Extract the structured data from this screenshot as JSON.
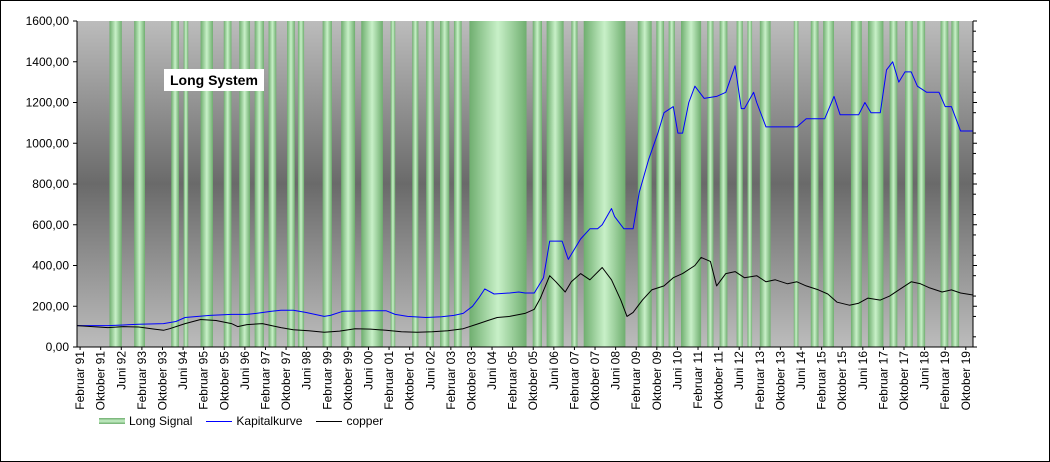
{
  "chart_data": {
    "type": "line",
    "title": "Long System",
    "xlabel": "",
    "ylabel": "",
    "ylim": [
      0,
      1600
    ],
    "y_ticks": [
      "0,00",
      "200,00",
      "400,00",
      "600,00",
      "800,00",
      "1000,00",
      "1200,00",
      "1400,00",
      "1600,00"
    ],
    "x_range": [
      1991.0,
      2020.0
    ],
    "x_tick_labels": [
      "Februar 91",
      "Oktober 91",
      "Juni 92",
      "Februar 93",
      "Oktober 93",
      "Juni 94",
      "Februar 95",
      "Oktober 95",
      "Juni 96",
      "Februar 97",
      "Oktober 97",
      "Juni 98",
      "Februar 99",
      "Oktober 99",
      "Juni 00",
      "Februar 01",
      "Oktober 01",
      "Juni 02",
      "Februar 03",
      "Oktober 03",
      "Juni 04",
      "Februar 05",
      "Oktober 05",
      "Juni 06",
      "Februar 07",
      "Oktober 07",
      "Juni 08",
      "Februar 09",
      "Oktober 09",
      "Juni 10",
      "Februar 11",
      "Oktober 11",
      "Juni 12",
      "Februar 13",
      "Oktober 13",
      "Juni 14",
      "Februar 15",
      "Oktober 15",
      "Juni 16",
      "Februar 17",
      "Oktober 17",
      "Juni 18",
      "Februar 19",
      "Oktober 19"
    ],
    "legend_position": "bottom-left",
    "legend": [
      "Long Signal",
      "Kapitalkurve",
      "copper"
    ],
    "colors": {
      "Kapitalkurve": "#0000ff",
      "copper": "#000000",
      "signal_edge": "#6fae6f",
      "signal_center": "#c8f0c8"
    },
    "long_signal_periods": [
      [
        1992.05,
        1992.45
      ],
      [
        1992.85,
        1993.2
      ],
      [
        1994.05,
        1994.3
      ],
      [
        1994.45,
        1994.6
      ],
      [
        1995.0,
        1995.4
      ],
      [
        1995.75,
        1996.0
      ],
      [
        1996.25,
        1996.6
      ],
      [
        1996.75,
        1997.05
      ],
      [
        1997.2,
        1997.45
      ],
      [
        1997.8,
        1998.05
      ],
      [
        1998.15,
        1998.35
      ],
      [
        1998.95,
        1999.25
      ],
      [
        1999.55,
        2000.0
      ],
      [
        2000.2,
        2000.9
      ],
      [
        2001.15,
        2001.3
      ],
      [
        2001.85,
        2002.05
      ],
      [
        2002.3,
        2002.55
      ],
      [
        2002.75,
        2003.05
      ],
      [
        2003.2,
        2003.45
      ],
      [
        2003.7,
        2005.55
      ],
      [
        2005.75,
        2006.05
      ],
      [
        2006.2,
        2006.75
      ],
      [
        2007.0,
        2007.2
      ],
      [
        2007.4,
        2008.75
      ],
      [
        2009.15,
        2009.6
      ],
      [
        2009.75,
        2010.0
      ],
      [
        2010.15,
        2010.35
      ],
      [
        2010.55,
        2011.2
      ],
      [
        2011.4,
        2011.6
      ],
      [
        2011.8,
        2012.05
      ],
      [
        2012.35,
        2012.55
      ],
      [
        2012.7,
        2012.85
      ],
      [
        2013.1,
        2013.45
      ],
      [
        2014.2,
        2014.35
      ],
      [
        2014.75,
        2015.0
      ],
      [
        2015.15,
        2015.5
      ],
      [
        2016.05,
        2016.4
      ],
      [
        2016.6,
        2017.1
      ],
      [
        2017.3,
        2017.55
      ],
      [
        2017.8,
        2018.05
      ],
      [
        2018.2,
        2018.45
      ],
      [
        2018.95,
        2019.2
      ],
      [
        2019.3,
        2019.55
      ]
    ],
    "series": [
      {
        "name": "Kapitalkurve",
        "x": [
          1991.0,
          1992.0,
          1992.5,
          1993.0,
          1993.8,
          1994.2,
          1994.5,
          1995.3,
          1996.0,
          1996.5,
          1996.8,
          1997.3,
          1997.6,
          1998.0,
          1998.4,
          1999.0,
          1999.2,
          1999.6,
          2000.5,
          2001.0,
          2001.3,
          2001.7,
          2002.3,
          2002.8,
          2003.2,
          2003.5,
          2003.8,
          2004.0,
          2004.2,
          2004.5,
          2005.0,
          2005.3,
          2005.5,
          2005.8,
          2006.1,
          2006.3,
          2006.7,
          2006.9,
          2007.1,
          2007.3,
          2007.6,
          2007.85,
          2008.0,
          2008.3,
          2008.4,
          2008.7,
          2008.8,
          2009.0,
          2009.2,
          2009.5,
          2009.8,
          2010.0,
          2010.3,
          2010.45,
          2010.6,
          2010.8,
          2011.0,
          2011.3,
          2011.7,
          2012.0,
          2012.3,
          2012.5,
          2012.6,
          2012.9,
          2013.0,
          2013.3,
          2013.6,
          2014.0,
          2014.3,
          2014.6,
          2015.0,
          2015.2,
          2015.5,
          2015.7,
          2016.0,
          2016.3,
          2016.5,
          2016.7,
          2017.0,
          2017.2,
          2017.4,
          2017.6,
          2017.8,
          2018.0,
          2018.2,
          2018.5,
          2018.9,
          2019.1,
          2019.3,
          2019.6,
          2020.0
        ],
        "y": [
          105,
          105,
          108,
          112,
          115,
          125,
          145,
          155,
          160,
          160,
          165,
          175,
          180,
          180,
          170,
          150,
          155,
          175,
          178,
          178,
          160,
          150,
          145,
          148,
          155,
          165,
          200,
          240,
          285,
          260,
          265,
          270,
          265,
          265,
          340,
          520,
          520,
          430,
          480,
          530,
          580,
          580,
          600,
          680,
          640,
          580,
          580,
          580,
          760,
          920,
          1050,
          1150,
          1180,
          1050,
          1050,
          1200,
          1280,
          1220,
          1230,
          1250,
          1380,
          1170,
          1170,
          1250,
          1200,
          1080,
          1080,
          1080,
          1080,
          1120,
          1120,
          1120,
          1230,
          1140,
          1140,
          1140,
          1200,
          1150,
          1150,
          1360,
          1400,
          1300,
          1350,
          1350,
          1280,
          1250,
          1250,
          1180,
          1180,
          1060,
          1060
        ]
      },
      {
        "name": "copper",
        "x": [
          1991.0,
          1991.5,
          1992.0,
          1992.5,
          1993.0,
          1993.5,
          1993.8,
          1994.0,
          1994.5,
          1995.0,
          1995.5,
          1996.0,
          1996.2,
          1996.5,
          1997.0,
          1997.3,
          1997.6,
          1998.0,
          1998.5,
          1999.0,
          1999.5,
          2000.0,
          2000.5,
          2001.0,
          2001.5,
          2002.0,
          2002.5,
          2003.0,
          2003.5,
          2004.0,
          2004.3,
          2004.6,
          2005.0,
          2005.5,
          2005.8,
          2006.0,
          2006.3,
          2006.5,
          2006.8,
          2007.0,
          2007.3,
          2007.6,
          2008.0,
          2008.3,
          2008.6,
          2008.8,
          2009.0,
          2009.3,
          2009.6,
          2010.0,
          2010.3,
          2010.6,
          2011.0,
          2011.2,
          2011.5,
          2011.7,
          2012.0,
          2012.3,
          2012.6,
          2013.0,
          2013.3,
          2013.6,
          2014.0,
          2014.3,
          2014.6,
          2015.0,
          2015.3,
          2015.6,
          2016.0,
          2016.3,
          2016.6,
          2017.0,
          2017.3,
          2017.6,
          2018.0,
          2018.3,
          2018.6,
          2019.0,
          2019.3,
          2019.6,
          2020.0
        ],
        "y": [
          105,
          100,
          95,
          100,
          98,
          88,
          82,
          90,
          115,
          135,
          130,
          115,
          100,
          110,
          115,
          105,
          95,
          85,
          80,
          72,
          78,
          90,
          88,
          82,
          75,
          72,
          75,
          80,
          90,
          115,
          130,
          145,
          150,
          165,
          185,
          240,
          350,
          320,
          270,
          320,
          360,
          330,
          390,
          330,
          230,
          150,
          170,
          230,
          280,
          300,
          340,
          360,
          400,
          440,
          420,
          300,
          360,
          370,
          340,
          350,
          320,
          330,
          310,
          320,
          300,
          280,
          260,
          220,
          205,
          215,
          240,
          230,
          250,
          280,
          320,
          310,
          290,
          270,
          280,
          265,
          255
        ]
      }
    ]
  }
}
